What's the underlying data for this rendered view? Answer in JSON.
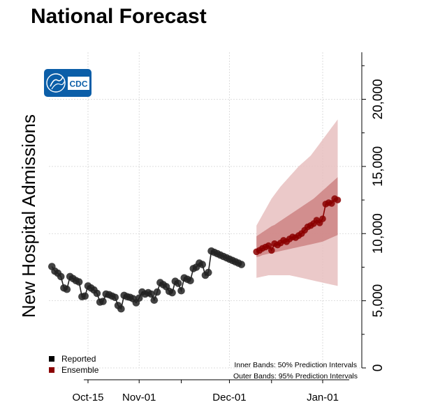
{
  "chart_data": {
    "type": "line",
    "title": "National Forecast",
    "ylabel": "New Hospital Admissions",
    "xlabel": "",
    "ylim": [
      0,
      23500
    ],
    "yticks": [
      0,
      5000,
      10000,
      15000,
      20000
    ],
    "ytick_labels": [
      "0",
      "5,000",
      "10,000",
      "15,000",
      "20,000"
    ],
    "xticks": [
      "2023-10-15",
      "2023-11-01",
      "2023-12-01",
      "2024-01-01"
    ],
    "xtick_labels": [
      "Oct-15",
      "Nov-01",
      "Dec-01",
      "Jan-01"
    ],
    "xlim": [
      "2023-10-02",
      "2024-01-14"
    ],
    "grid": true,
    "legend_position": "bottom-left",
    "colors": {
      "reported": "#222222",
      "ensemble": "#8b0000",
      "inner_band": "#c9797a",
      "outer_band": "#e8c0c0"
    },
    "series": [
      {
        "name": "Reported",
        "x": [
          "2023-10-03",
          "2023-10-04",
          "2023-10-05",
          "2023-10-06",
          "2023-10-07",
          "2023-10-08",
          "2023-10-09",
          "2023-10-10",
          "2023-10-11",
          "2023-10-12",
          "2023-10-13",
          "2023-10-14",
          "2023-10-15",
          "2023-10-16",
          "2023-10-17",
          "2023-10-18",
          "2023-10-19",
          "2023-10-20",
          "2023-10-21",
          "2023-10-22",
          "2023-10-23",
          "2023-10-24",
          "2023-10-25",
          "2023-10-26",
          "2023-10-27",
          "2023-10-28",
          "2023-10-29",
          "2023-10-30",
          "2023-10-31",
          "2023-11-01",
          "2023-11-02",
          "2023-11-03",
          "2023-11-04",
          "2023-11-05",
          "2023-11-06",
          "2023-11-07",
          "2023-11-08",
          "2023-11-09",
          "2023-11-10",
          "2023-11-11",
          "2023-11-12",
          "2023-11-13",
          "2023-11-14",
          "2023-11-15",
          "2023-11-16",
          "2023-11-17",
          "2023-11-18",
          "2023-11-19",
          "2023-11-20",
          "2023-11-21",
          "2023-11-22",
          "2023-11-23",
          "2023-11-24",
          "2023-11-25",
          "2023-11-26",
          "2023-11-27",
          "2023-11-28",
          "2023-11-29",
          "2023-11-30",
          "2023-12-01",
          "2023-12-02",
          "2023-12-03",
          "2023-12-04",
          "2023-12-05"
        ],
        "values": [
          7550,
          7200,
          7050,
          6800,
          5950,
          5850,
          6800,
          6650,
          6500,
          6400,
          5300,
          5350,
          6100,
          5950,
          5800,
          5550,
          4900,
          4950,
          5500,
          5450,
          5350,
          5250,
          4650,
          4400,
          5400,
          5300,
          5250,
          5150,
          4850,
          5200,
          5650,
          5500,
          5600,
          5500,
          5050,
          5650,
          6350,
          6200,
          6050,
          5700,
          5600,
          6450,
          6300,
          5750,
          6700,
          6600,
          6500,
          7400,
          7500,
          7800,
          7700,
          6900,
          7100,
          8700,
          8600,
          8500,
          8400,
          8300,
          8200,
          8100,
          8000,
          7900,
          7800,
          7700
        ],
        "trim_to": "2023-12-05"
      },
      {
        "name": "Ensemble",
        "x": [
          "2023-12-10",
          "2023-12-11",
          "2023-12-12",
          "2023-12-13",
          "2023-12-14",
          "2023-12-15",
          "2023-12-16",
          "2023-12-17",
          "2023-12-18",
          "2023-12-19",
          "2023-12-20",
          "2023-12-21",
          "2023-12-22",
          "2023-12-23",
          "2023-12-24",
          "2023-12-25",
          "2023-12-26",
          "2023-12-27",
          "2023-12-28",
          "2023-12-29",
          "2023-12-30",
          "2023-12-31",
          "2024-01-01",
          "2024-01-02",
          "2024-01-03",
          "2024-01-04",
          "2024-01-05",
          "2024-01-06"
        ],
        "values": [
          8650,
          8750,
          8900,
          9000,
          9100,
          8750,
          9250,
          9150,
          9300,
          9500,
          9400,
          9600,
          9750,
          9700,
          9850,
          10000,
          10250,
          10500,
          10600,
          10750,
          11000,
          10800,
          11100,
          12200,
          12300,
          12250,
          12600,
          12500
        ],
        "inner_lower": [
          8250,
          8300,
          8400,
          8450,
          8500,
          8550,
          8600,
          8650,
          8700,
          8750,
          8800,
          8850,
          8900,
          8950,
          9000,
          9050,
          9100,
          9150,
          9200,
          9250,
          9300,
          9350,
          9400,
          9500,
          9600,
          9700,
          9800,
          9900
        ],
        "inner_upper": [
          9800,
          9950,
          10100,
          10250,
          10400,
          10550,
          10650,
          10800,
          10950,
          11100,
          11250,
          11400,
          11550,
          11700,
          11850,
          12000,
          12150,
          12300,
          12450,
          12600,
          12800,
          13000,
          13200,
          13400,
          13600,
          13800,
          14000,
          14200
        ],
        "outer_lower": [
          6700,
          6750,
          6800,
          6850,
          6900,
          6900,
          6900,
          6900,
          6900,
          6900,
          6900,
          6900,
          6850,
          6800,
          6750,
          6700,
          6650,
          6600,
          6550,
          6500,
          6450,
          6400,
          6350,
          6300,
          6250,
          6200,
          6150,
          6100
        ],
        "outer_upper": [
          10600,
          11000,
          11400,
          11800,
          12200,
          12600,
          12900,
          13200,
          13500,
          13750,
          14000,
          14250,
          14500,
          14750,
          15000,
          15200,
          15400,
          15600,
          15800,
          16100,
          16400,
          16700,
          17000,
          17300,
          17600,
          17900,
          18200,
          18500
        ]
      }
    ],
    "annotations": [
      "Inner Bands: 50% Prediction Intervals",
      "Outer Bands: 95% Prediction Intervals"
    ]
  },
  "logo": {
    "text": "CDC",
    "bg": "#0b5ea8"
  }
}
